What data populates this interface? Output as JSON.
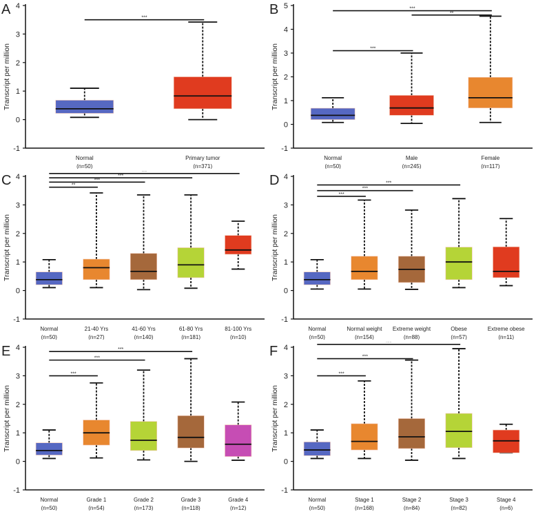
{
  "chart_data": [
    {
      "type": "box",
      "panel": "A",
      "ylabel": "Transcript per million",
      "ylim": [
        -1,
        4
      ],
      "yticks": [
        -1,
        0,
        1,
        2,
        3,
        4
      ],
      "categories": [
        "Normal",
        "Primary tumor"
      ],
      "n_labels": [
        "(n=50)",
        "(n=371)"
      ],
      "colors": [
        "#5668c2",
        "#e03b1f"
      ],
      "boxes": [
        [
          0.08,
          0.22,
          0.38,
          0.68,
          1.1
        ],
        [
          0.0,
          0.38,
          0.83,
          1.5,
          3.42
        ]
      ],
      "significance": [
        {
          "from": 0,
          "to": 1,
          "y": 3.5,
          "label": "***"
        }
      ]
    },
    {
      "type": "box",
      "panel": "B",
      "ylabel": "Transcript per million",
      "ylim": [
        -1,
        5
      ],
      "yticks": [
        -1,
        0,
        1,
        2,
        3,
        4,
        5
      ],
      "categories": [
        "Normal",
        "Male",
        "Female"
      ],
      "n_labels": [
        "(n=50)",
        "(n=245)",
        "(n=117)"
      ],
      "colors": [
        "#5668c2",
        "#e03b1f",
        "#e8872f"
      ],
      "boxes": [
        [
          0.08,
          0.2,
          0.38,
          0.68,
          1.12
        ],
        [
          0.04,
          0.38,
          0.69,
          1.22,
          3.0
        ],
        [
          0.08,
          0.69,
          1.12,
          1.98,
          4.55
        ]
      ],
      "significance": [
        {
          "from": 0,
          "to": 2,
          "y": 4.78,
          "label": "***"
        },
        {
          "from": 1,
          "to": 2,
          "y": 4.6,
          "label": "**"
        },
        {
          "from": 0,
          "to": 1,
          "y": 3.1,
          "label": "***"
        }
      ]
    },
    {
      "type": "box",
      "panel": "C",
      "ylabel": "Transcript per million",
      "ylim": [
        -1,
        4
      ],
      "yticks": [
        -1,
        0,
        1,
        2,
        3,
        4
      ],
      "categories": [
        "Normal",
        "21-40 Yrs",
        "41-60 Yrs",
        "61-80 Yrs",
        "81-100 Yrs"
      ],
      "n_labels": [
        "(n=50)",
        "(n=27)",
        "(n=140)",
        "(n=181)",
        "(n=10)"
      ],
      "colors": [
        "#5668c2",
        "#e8872f",
        "#a5683b",
        "#b5d437",
        "#e03b1f"
      ],
      "boxes": [
        [
          0.1,
          0.2,
          0.38,
          0.65,
          1.08
        ],
        [
          0.1,
          0.38,
          0.8,
          1.1,
          3.42
        ],
        [
          0.03,
          0.38,
          0.67,
          1.3,
          3.35
        ],
        [
          0.08,
          0.45,
          0.9,
          1.5,
          3.35
        ],
        [
          0.75,
          1.27,
          1.42,
          1.93,
          2.43
        ]
      ],
      "significance": [
        {
          "from": 0,
          "to": 4,
          "y": 4.1,
          "label": "***"
        },
        {
          "from": 0,
          "to": 3,
          "y": 3.95,
          "label": "***"
        },
        {
          "from": 0,
          "to": 2,
          "y": 3.8,
          "label": "***"
        },
        {
          "from": 0,
          "to": 1,
          "y": 3.62,
          "label": "**"
        }
      ]
    },
    {
      "type": "box",
      "panel": "D",
      "ylabel": "Transcript per million",
      "ylim": [
        -1,
        4
      ],
      "yticks": [
        -1,
        0,
        1,
        2,
        3,
        4
      ],
      "categories": [
        "Normal",
        "Normal weight",
        "Extreme weight",
        "Obese",
        "Extreme obese"
      ],
      "n_labels": [
        "(n=50)",
        "(n=154)",
        "(n=88)",
        "(n=57)",
        "(n=11)"
      ],
      "colors": [
        "#5668c2",
        "#e8872f",
        "#a5683b",
        "#b5d437",
        "#e03b1f"
      ],
      "boxes": [
        [
          0.05,
          0.2,
          0.38,
          0.65,
          1.08
        ],
        [
          0.05,
          0.38,
          0.67,
          1.2,
          3.17
        ],
        [
          0.04,
          0.28,
          0.74,
          1.2,
          2.82
        ],
        [
          0.1,
          0.38,
          1.0,
          1.52,
          3.22
        ],
        [
          0.17,
          0.45,
          0.67,
          1.53,
          2.52
        ]
      ],
      "significance": [
        {
          "from": 0,
          "to": 3,
          "y": 3.7,
          "label": "***"
        },
        {
          "from": 0,
          "to": 2,
          "y": 3.5,
          "label": "***"
        },
        {
          "from": 0,
          "to": 1,
          "y": 3.3,
          "label": "***"
        }
      ]
    },
    {
      "type": "box",
      "panel": "E",
      "ylabel": "Transcript per million",
      "ylim": [
        -1,
        4
      ],
      "yticks": [
        -1,
        0,
        1,
        2,
        3,
        4
      ],
      "categories": [
        "Normal",
        "Grade 1",
        "Grade 2",
        "Grade 3",
        "Grade 4"
      ],
      "n_labels": [
        "(n=50)",
        "(n=54)",
        "(n=173)",
        "(n=118)",
        "(n=12)"
      ],
      "colors": [
        "#5668c2",
        "#e8872f",
        "#b5d437",
        "#a5683b",
        "#c64db4"
      ],
      "boxes": [
        [
          0.1,
          0.22,
          0.38,
          0.65,
          1.1
        ],
        [
          0.12,
          0.57,
          1.0,
          1.45,
          2.75
        ],
        [
          0.05,
          0.38,
          0.74,
          1.4,
          3.2
        ],
        [
          0.0,
          0.47,
          0.84,
          1.6,
          3.6
        ],
        [
          0.04,
          0.17,
          0.6,
          1.28,
          2.08
        ]
      ],
      "significance": [
        {
          "from": 0,
          "to": 3,
          "y": 3.85,
          "label": "***"
        },
        {
          "from": 0,
          "to": 2,
          "y": 3.55,
          "label": "***"
        },
        {
          "from": 0,
          "to": 1,
          "y": 3.0,
          "label": "***"
        }
      ]
    },
    {
      "type": "box",
      "panel": "F",
      "ylabel": "Transcript per million",
      "ylim": [
        -1,
        4
      ],
      "yticks": [
        -1,
        0,
        1,
        2,
        3,
        4
      ],
      "categories": [
        "Normal",
        "Stage 1",
        "Stage 2",
        "Stage 3",
        "Stage 4"
      ],
      "n_labels": [
        "(n=50)",
        "(n=168)",
        "(n=84)",
        "(n=82)",
        "(n=6)"
      ],
      "colors": [
        "#5668c2",
        "#e8872f",
        "#a5683b",
        "#b5d437",
        "#e03b1f"
      ],
      "boxes": [
        [
          0.1,
          0.2,
          0.4,
          0.68,
          1.1
        ],
        [
          0.1,
          0.4,
          0.7,
          1.32,
          2.82
        ],
        [
          0.04,
          0.45,
          0.86,
          1.5,
          3.55
        ],
        [
          0.1,
          0.48,
          1.05,
          1.68,
          3.95
        ],
        [
          0.3,
          0.3,
          0.72,
          1.1,
          1.3
        ]
      ],
      "significance": [
        {
          "from": 0,
          "to": 3,
          "y": 4.1,
          "label": "***"
        },
        {
          "from": 0,
          "to": 2,
          "y": 3.6,
          "label": "***"
        },
        {
          "from": 0,
          "to": 1,
          "y": 3.0,
          "label": "***"
        }
      ]
    }
  ]
}
